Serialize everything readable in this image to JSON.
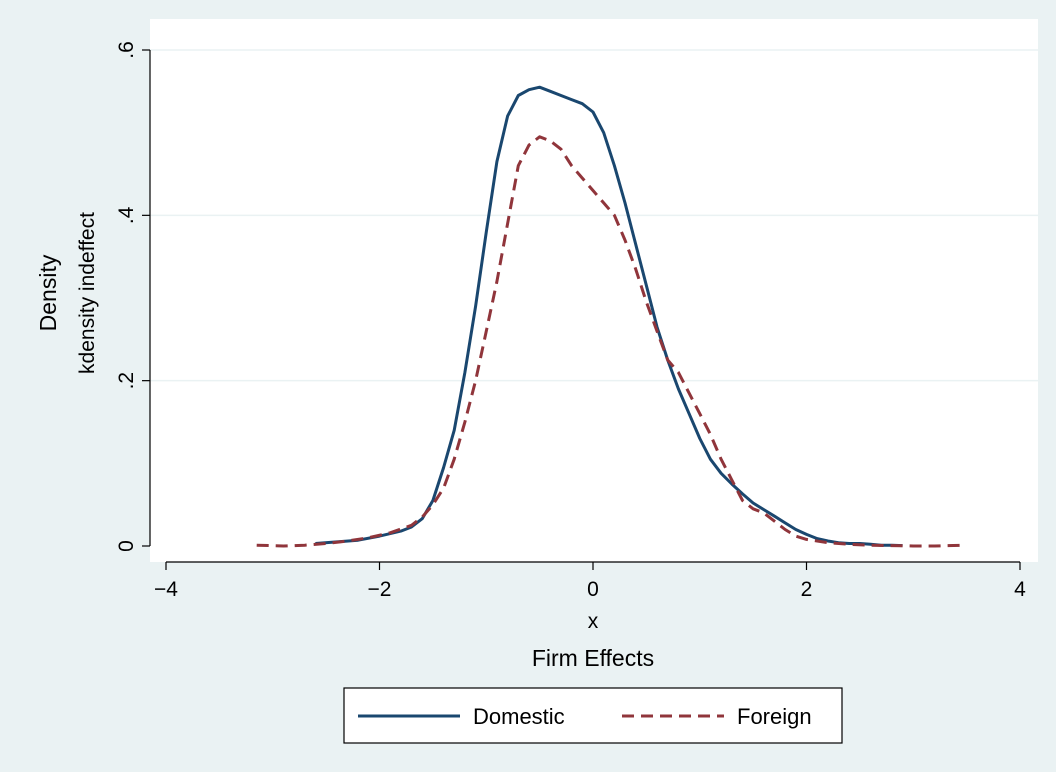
{
  "chart_data": {
    "type": "line",
    "ylabel": "Density",
    "ylabel_secondary": "kdensity indeffect",
    "xlabel": "x",
    "xlabel_secondary": "Firm Effects",
    "xlim": [
      -4,
      4
    ],
    "ylim": [
      0,
      0.6
    ],
    "x_ticks": [
      -4,
      -2,
      0,
      2,
      4
    ],
    "x_tick_labels": [
      "−4",
      "−2",
      "0",
      "2",
      "4"
    ],
    "y_ticks": [
      0,
      0.2,
      0.4,
      0.6
    ],
    "y_tick_labels": [
      "0",
      ".2",
      ".4",
      ".6"
    ],
    "grid": "horizontal",
    "legend_position": "bottom",
    "series": [
      {
        "name": "Domestic",
        "color": "#1a476f",
        "style": "solid",
        "x": [
          -2.6,
          -2.4,
          -2.2,
          -2.0,
          -1.8,
          -1.7,
          -1.6,
          -1.5,
          -1.4,
          -1.3,
          -1.2,
          -1.1,
          -1.0,
          -0.9,
          -0.8,
          -0.7,
          -0.6,
          -0.5,
          -0.4,
          -0.3,
          -0.2,
          -0.1,
          0.0,
          0.1,
          0.2,
          0.3,
          0.4,
          0.5,
          0.6,
          0.7,
          0.8,
          0.9,
          1.0,
          1.1,
          1.2,
          1.3,
          1.4,
          1.5,
          1.6,
          1.7,
          1.8,
          1.9,
          2.0,
          2.1,
          2.2,
          2.3,
          2.4,
          2.5,
          2.6,
          2.7,
          2.8,
          2.9
        ],
        "y": [
          0.003,
          0.005,
          0.007,
          0.012,
          0.018,
          0.023,
          0.033,
          0.055,
          0.095,
          0.14,
          0.21,
          0.29,
          0.38,
          0.465,
          0.52,
          0.545,
          0.552,
          0.555,
          0.55,
          0.545,
          0.54,
          0.535,
          0.525,
          0.5,
          0.46,
          0.415,
          0.365,
          0.315,
          0.265,
          0.225,
          0.19,
          0.16,
          0.13,
          0.105,
          0.088,
          0.075,
          0.063,
          0.052,
          0.044,
          0.036,
          0.028,
          0.02,
          0.014,
          0.009,
          0.006,
          0.004,
          0.003,
          0.003,
          0.002,
          0.001,
          0.001,
          0.0005
        ]
      },
      {
        "name": "Foreign",
        "color": "#90353b",
        "style": "dashed",
        "x": [
          -3.15,
          -2.9,
          -2.7,
          -2.5,
          -2.3,
          -2.1,
          -1.9,
          -1.7,
          -1.6,
          -1.5,
          -1.4,
          -1.3,
          -1.2,
          -1.1,
          -1.0,
          -0.9,
          -0.8,
          -0.7,
          -0.6,
          -0.5,
          -0.4,
          -0.3,
          -0.2,
          -0.1,
          0.0,
          0.1,
          0.2,
          0.3,
          0.4,
          0.5,
          0.6,
          0.7,
          0.8,
          0.9,
          1.0,
          1.1,
          1.2,
          1.3,
          1.4,
          1.5,
          1.6,
          1.7,
          1.8,
          1.9,
          2.0,
          2.2,
          2.4,
          2.6,
          2.8,
          3.0,
          3.2,
          3.5
        ],
        "y": [
          0.001,
          0.0,
          0.001,
          0.003,
          0.006,
          0.01,
          0.016,
          0.025,
          0.035,
          0.05,
          0.07,
          0.105,
          0.15,
          0.2,
          0.26,
          0.32,
          0.39,
          0.46,
          0.485,
          0.495,
          0.49,
          0.48,
          0.46,
          0.445,
          0.43,
          0.415,
          0.4,
          0.37,
          0.335,
          0.295,
          0.26,
          0.225,
          0.21,
          0.185,
          0.16,
          0.135,
          0.105,
          0.08,
          0.055,
          0.045,
          0.04,
          0.03,
          0.02,
          0.012,
          0.008,
          0.004,
          0.002,
          0.001,
          0.0005,
          0.0,
          0.0,
          0.001
        ]
      }
    ]
  }
}
